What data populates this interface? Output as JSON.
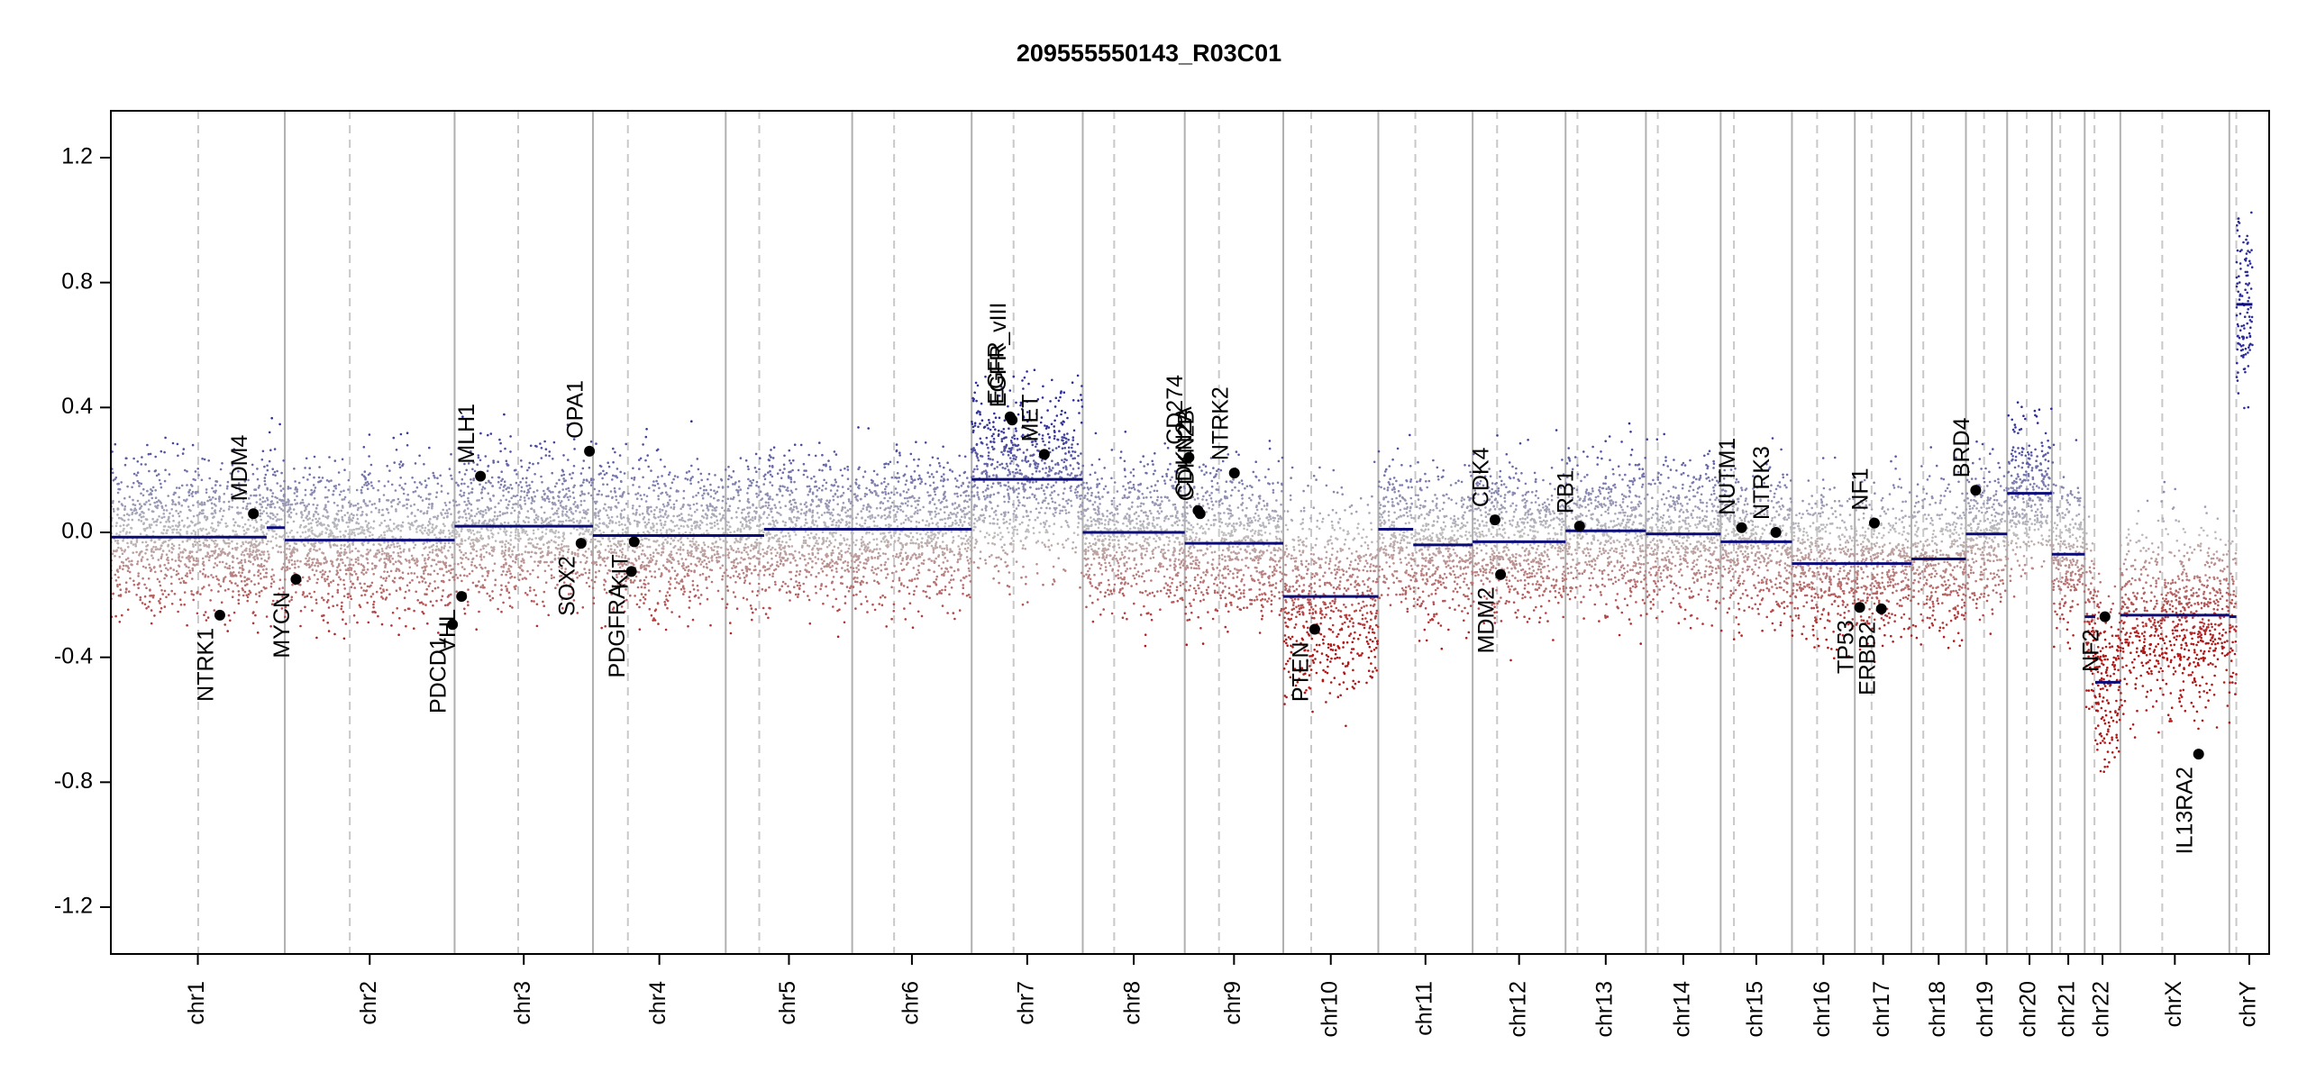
{
  "chart_data": {
    "type": "scatter",
    "title": "209555550143_R03C01",
    "xlabel": "",
    "ylabel": "",
    "ylim": [
      -1.35,
      1.35
    ],
    "yticks": [
      {
        "value": 1.2,
        "label": "1.2"
      },
      {
        "value": 0.8,
        "label": "0.8"
      },
      {
        "value": 0.4,
        "label": "0.4"
      },
      {
        "value": 0.0,
        "label": "0.0"
      },
      {
        "value": -0.4,
        "label": "-0.4"
      },
      {
        "value": -0.8,
        "label": "-0.8"
      },
      {
        "value": -1.2,
        "label": "-1.2"
      }
    ],
    "grid": false,
    "colors": {
      "gain": "#2d2d9a",
      "loss": "#b01818",
      "neutral": "#bfbfbf",
      "segment": "#0a0a78",
      "gene_point": "#000000",
      "chr_border": "#b0b0b0",
      "centromere": "#c8c8c8"
    },
    "chromosomes": [
      {
        "name": "chr1",
        "start": 0,
        "end": 249,
        "centromere": 125
      },
      {
        "name": "chr2",
        "start": 249,
        "end": 492,
        "centromere": 93
      },
      {
        "name": "chr3",
        "start": 492,
        "end": 690,
        "centromere": 91
      },
      {
        "name": "chr4",
        "start": 690,
        "end": 880,
        "centromere": 50
      },
      {
        "name": "chr5",
        "start": 880,
        "end": 1061,
        "centromere": 48
      },
      {
        "name": "chr6",
        "start": 1061,
        "end": 1232,
        "centromere": 60
      },
      {
        "name": "chr7",
        "start": 1232,
        "end": 1391,
        "centromere": 60
      },
      {
        "name": "chr8",
        "start": 1391,
        "end": 1537,
        "centromere": 45
      },
      {
        "name": "chr9",
        "start": 1537,
        "end": 1678,
        "centromere": 49
      },
      {
        "name": "chr10",
        "start": 1678,
        "end": 1814,
        "centromere": 40
      },
      {
        "name": "chr11",
        "start": 1814,
        "end": 1949,
        "centromere": 53
      },
      {
        "name": "chr12",
        "start": 1949,
        "end": 2082,
        "centromere": 35
      },
      {
        "name": "chr13",
        "start": 2082,
        "end": 2197,
        "centromere": 17
      },
      {
        "name": "chr14",
        "start": 2197,
        "end": 2304,
        "centromere": 17
      },
      {
        "name": "chr15",
        "start": 2304,
        "end": 2406,
        "centromere": 19
      },
      {
        "name": "chr16",
        "start": 2406,
        "end": 2496,
        "centromere": 36
      },
      {
        "name": "chr17",
        "start": 2496,
        "end": 2577,
        "centromere": 24
      },
      {
        "name": "chr18",
        "start": 2577,
        "end": 2655,
        "centromere": 17
      },
      {
        "name": "chr19",
        "start": 2655,
        "end": 2714,
        "centromere": 26
      },
      {
        "name": "chr20",
        "start": 2714,
        "end": 2778,
        "centromere": 28
      },
      {
        "name": "chr21",
        "start": 2778,
        "end": 2825,
        "centromere": 12
      },
      {
        "name": "chr22",
        "start": 2825,
        "end": 2876,
        "centromere": 14
      },
      {
        "name": "chrX",
        "start": 2876,
        "end": 3032,
        "centromere": 60
      },
      {
        "name": "chrY",
        "start": 3032,
        "end": 3089,
        "centromere": 10
      }
    ],
    "segments": [
      {
        "start": 0,
        "end": 223,
        "value": -0.015
      },
      {
        "start": 223,
        "end": 249,
        "value": 0.015
      },
      {
        "start": 249,
        "end": 492,
        "value": -0.025
      },
      {
        "start": 492,
        "end": 690,
        "value": 0.02
      },
      {
        "start": 690,
        "end": 880,
        "value": -0.01
      },
      {
        "start": 880,
        "end": 935,
        "value": -0.01
      },
      {
        "start": 935,
        "end": 1232,
        "value": 0.01
      },
      {
        "start": 1232,
        "end": 1391,
        "value": 0.17
      },
      {
        "start": 1391,
        "end": 1537,
        "value": 0.0
      },
      {
        "start": 1537,
        "end": 1678,
        "value": -0.035
      },
      {
        "start": 1678,
        "end": 1814,
        "value": -0.205
      },
      {
        "start": 1814,
        "end": 1864,
        "value": 0.01
      },
      {
        "start": 1864,
        "end": 1949,
        "value": -0.04
      },
      {
        "start": 1949,
        "end": 2082,
        "value": -0.03
      },
      {
        "start": 2082,
        "end": 2197,
        "value": 0.005
      },
      {
        "start": 2197,
        "end": 2304,
        "value": -0.005
      },
      {
        "start": 2304,
        "end": 2406,
        "value": -0.03
      },
      {
        "start": 2406,
        "end": 2496,
        "value": -0.1
      },
      {
        "start": 2496,
        "end": 2577,
        "value": -0.1
      },
      {
        "start": 2577,
        "end": 2655,
        "value": -0.085
      },
      {
        "start": 2655,
        "end": 2714,
        "value": -0.005
      },
      {
        "start": 2714,
        "end": 2778,
        "value": 0.125
      },
      {
        "start": 2778,
        "end": 2825,
        "value": -0.07
      },
      {
        "start": 2825,
        "end": 2840,
        "value": -0.27
      },
      {
        "start": 2840,
        "end": 2876,
        "value": -0.48
      },
      {
        "start": 2876,
        "end": 3032,
        "value": -0.265
      },
      {
        "start": 3032,
        "end": 3042,
        "value": -0.27
      },
      {
        "start": 3042,
        "end": 3065,
        "value": 0.73
      }
    ],
    "genes": [
      {
        "name": "NTRK1",
        "x": 156,
        "y": -0.265,
        "side": "below"
      },
      {
        "name": "MDM4",
        "x": 204,
        "y": 0.06,
        "side": "above"
      },
      {
        "name": "MYCN",
        "x": 265,
        "y": -0.15,
        "side": "below"
      },
      {
        "name": "PDCD1",
        "x": 489,
        "y": -0.295,
        "side": "below"
      },
      {
        "name": "VHL",
        "x": 502,
        "y": -0.205,
        "side": "below"
      },
      {
        "name": "MLH1",
        "x": 529,
        "y": 0.18,
        "side": "above"
      },
      {
        "name": "SOX2",
        "x": 673,
        "y": -0.035,
        "side": "below"
      },
      {
        "name": "OPA1",
        "x": 685,
        "y": 0.26,
        "side": "above"
      },
      {
        "name": "PDGFRA",
        "x": 745,
        "y": -0.125,
        "side": "below"
      },
      {
        "name": "KIT",
        "x": 749,
        "y": -0.03,
        "side": "below"
      },
      {
        "name": "EGFR",
        "x": 1287,
        "y": 0.37,
        "side": "above"
      },
      {
        "name": "EGFR_vIII",
        "x": 1290,
        "y": 0.36,
        "side": "above"
      },
      {
        "name": "MET",
        "x": 1336,
        "y": 0.25,
        "side": "above"
      },
      {
        "name": "CD274",
        "x": 1543,
        "y": 0.24,
        "side": "above"
      },
      {
        "name": "CDKN2A",
        "x": 1556,
        "y": 0.07,
        "side": "above"
      },
      {
        "name": "CDKN2B",
        "x": 1559,
        "y": 0.06,
        "side": "above"
      },
      {
        "name": "NTRK2",
        "x": 1608,
        "y": 0.19,
        "side": "above"
      },
      {
        "name": "PTEN",
        "x": 1723,
        "y": -0.31,
        "side": "below"
      },
      {
        "name": "CDK4",
        "x": 1981,
        "y": 0.04,
        "side": "above"
      },
      {
        "name": "MDM2",
        "x": 1989,
        "y": -0.135,
        "side": "below"
      },
      {
        "name": "RB1",
        "x": 2102,
        "y": 0.02,
        "side": "above"
      },
      {
        "name": "NUTM1",
        "x": 2334,
        "y": 0.015,
        "side": "above"
      },
      {
        "name": "NTRK3",
        "x": 2383,
        "y": 0.0,
        "side": "above"
      },
      {
        "name": "TP53",
        "x": 2503,
        "y": -0.24,
        "side": "below"
      },
      {
        "name": "ERBB2",
        "x": 2534,
        "y": -0.245,
        "side": "below"
      },
      {
        "name": "NF1",
        "x": 2524,
        "y": 0.03,
        "side": "above"
      },
      {
        "name": "BRD4",
        "x": 2669,
        "y": 0.135,
        "side": "above"
      },
      {
        "name": "NF2",
        "x": 2854,
        "y": -0.27,
        "side": "below"
      },
      {
        "name": "IL13RA2",
        "x": 2988,
        "y": -0.71,
        "side": "below"
      }
    ]
  }
}
